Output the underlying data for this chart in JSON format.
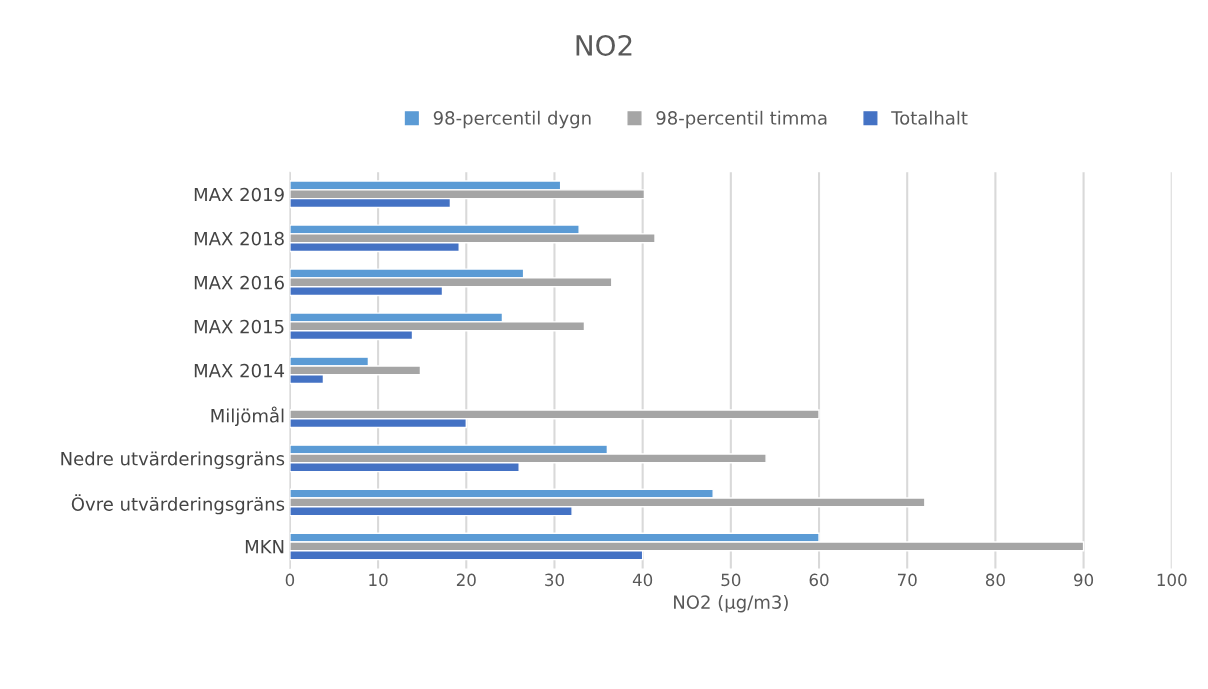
{
  "chart_data": {
    "type": "bar",
    "orientation": "horizontal",
    "title": "NO2",
    "xlabel": "NO2 (µg/m3)",
    "categories": [
      "MAX 2019",
      "MAX 2018",
      "MAX 2016",
      "MAX 2015",
      "MAX 2014",
      "Miljömål",
      "Nedre utvärderingsgräns",
      "Övre utvärderingsgräns",
      "MKN"
    ],
    "series": [
      {
        "name": "98-percentil dygn",
        "color": "#5b9bd5",
        "values": [
          30.7,
          32.8,
          26.5,
          24.1,
          8.9,
          null,
          36,
          48,
          60
        ]
      },
      {
        "name": "98-percentil timma",
        "color": "#a5a5a5",
        "values": [
          40.2,
          41.4,
          36.5,
          33.4,
          14.8,
          60,
          54,
          72,
          90
        ]
      },
      {
        "name": "Totalhalt",
        "color": "#4472c4",
        "values": [
          18.2,
          19.2,
          17.3,
          13.9,
          3.8,
          20,
          26,
          32,
          40
        ]
      }
    ],
    "xlim": [
      0,
      100
    ],
    "xticks": [
      0,
      10,
      20,
      30,
      40,
      50,
      60,
      70,
      80,
      90,
      100
    ],
    "grid": "x",
    "legend": "top"
  }
}
